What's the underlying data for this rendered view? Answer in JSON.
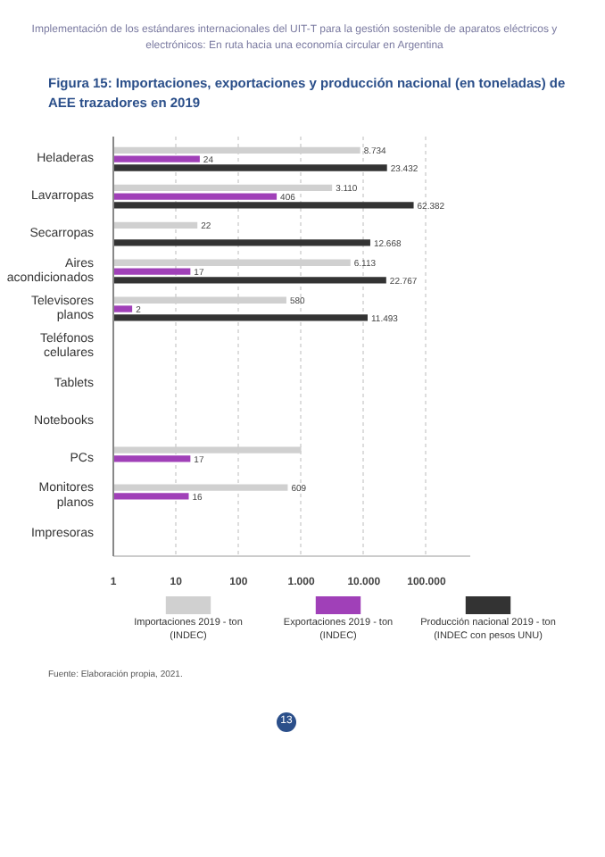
{
  "chart_data": {
    "type": "bar",
    "orientation": "horizontal",
    "log": "x",
    "title": "Figura 15: Importaciones, exportaciones y producción nacional (en toneladas) de AEE trazadores en 2019",
    "categories": [
      "Heladeras",
      "Lavarropas",
      "Secarropas",
      "Aires acondicionados",
      "Televisores planos",
      "Teléfonos celulares",
      "Tablets",
      "Notebooks",
      "PCs",
      "Monitores planos",
      "Impresoras"
    ],
    "series": [
      {
        "name": "Importaciones 2019 - ton (INDEC)",
        "color": "#d0d0d0",
        "values": [
          8734,
          3110,
          22,
          6113,
          580,
          null,
          null,
          null,
          1000,
          609,
          null
        ],
        "value_labels": [
          "8.734",
          "3.110",
          "22",
          "6.113",
          "580",
          null,
          null,
          null,
          null,
          "609",
          null
        ]
      },
      {
        "name": "Exportaciones 2019 - ton (INDEC)",
        "color": "#a040b8",
        "values": [
          24,
          406,
          null,
          17,
          2,
          null,
          null,
          null,
          17,
          16,
          null
        ],
        "value_labels": [
          "24",
          "406",
          null,
          "17",
          "2",
          null,
          null,
          null,
          "17",
          "16",
          null
        ]
      },
      {
        "name": "Producción nacional 2019 - ton (INDEC con pesos UNU)",
        "color": "#333333",
        "values": [
          23432,
          62382,
          12668,
          22767,
          11493,
          null,
          null,
          null,
          null,
          null,
          null
        ],
        "value_labels": [
          "23.432",
          "62.382",
          "12.668",
          "22.767",
          "11.493",
          null,
          null,
          null,
          null,
          null,
          null
        ]
      }
    ],
    "xlim": [
      1,
      500000
    ],
    "xticks": [
      {
        "value": 1,
        "label": "1"
      },
      {
        "value": 10,
        "label": "10"
      },
      {
        "value": 100,
        "label": "100"
      },
      {
        "value": 1000,
        "label": "1.000"
      },
      {
        "value": 10000,
        "label": "10.000"
      },
      {
        "value": 100000,
        "label": "100.000"
      }
    ],
    "grid": "x",
    "legend": "bottom",
    "annotations": [
      "Implementación de los estándares internacionales del UIT-T para la gestión sostenible de aparatos eléctricos y electrónicos: En ruta hacia una economía circular en Argentina",
      "Fuente: Elaboración propia, 2021.",
      "13"
    ]
  }
}
